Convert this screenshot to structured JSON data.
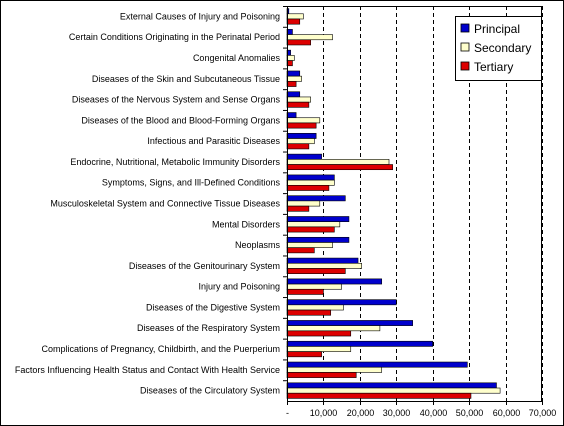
{
  "chart_data": {
    "type": "bar",
    "orientation": "horizontal",
    "categories": [
      "External Causes of Injury and Poisoning",
      "Certain Conditions Originating in the Perinatal Period",
      "Congenital Anomalies",
      "Diseases of the Skin and Subcutaneous Tissue",
      "Diseases of the Nervous System and Sense Organs",
      "Diseases of the Blood and Blood-Forming Organs",
      "Infectious and Parasitic Diseases",
      "Endocrine, Nutritional, Metabolic Immunity Disorders",
      "Symptoms, Signs, and Ill-Defined Conditions",
      "Musculoskeletal System and Connective Tissue Diseases",
      "Mental Disorders",
      "Neoplasms",
      "Diseases of the Genitourinary System",
      "Injury and Poisoning",
      "Diseases of the Digestive System",
      "Diseases of the Respiratory System",
      "Complications of Pregnancy, Childbirth, and the Puerperium",
      "Factors Influencing Health Status and Contact With Health Service",
      "Diseases of the Circulatory System"
    ],
    "series": [
      {
        "name": "Principal",
        "color": "#0000cc",
        "values": [
          500,
          1500,
          1000,
          3500,
          3500,
          2500,
          8000,
          9500,
          13000,
          16000,
          17000,
          17000,
          19500,
          26000,
          30000,
          34500,
          40000,
          49500,
          57500
        ]
      },
      {
        "name": "Secondary",
        "color": "#ffffcc",
        "values": [
          4500,
          12500,
          2000,
          4000,
          6500,
          9000,
          7500,
          28000,
          13000,
          9000,
          14500,
          12500,
          20500,
          15000,
          15500,
          25500,
          17500,
          26000,
          58500
        ]
      },
      {
        "name": "Tertiary",
        "color": "#dd0000",
        "values": [
          3500,
          6500,
          1500,
          2500,
          6000,
          8000,
          6000,
          29000,
          11500,
          6000,
          13000,
          7500,
          16000,
          10000,
          12000,
          17500,
          9500,
          19000,
          50500
        ]
      }
    ],
    "xlim": [
      0,
      70000
    ],
    "xticks": [
      0,
      10000,
      20000,
      30000,
      40000,
      50000,
      60000,
      70000
    ],
    "xtick_labels": [
      "-",
      "10,000",
      "20,000",
      "30,000",
      "40,000",
      "50,000",
      "60,000",
      "70,000"
    ],
    "grid": "vertical dashed",
    "legend_position": "top-right"
  }
}
